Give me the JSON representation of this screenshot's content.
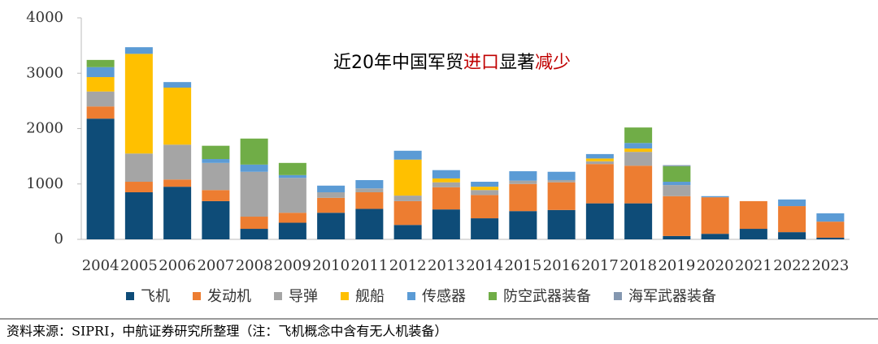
{
  "chart_data": {
    "type": "stacked_bar",
    "annotation": [
      {
        "text": "近20年中国军贸",
        "color": "#000000"
      },
      {
        "text": "进口",
        "color": "#c00000"
      },
      {
        "text": "显著",
        "color": "#000000"
      },
      {
        "text": "减少",
        "color": "#c00000"
      }
    ],
    "source": "资料来源：SIPRI，中航证券研究所整理（注：飞机概念中含有无人机装备）",
    "categories": [
      "2004",
      "2005",
      "2006",
      "2007",
      "2008",
      "2009",
      "2010",
      "2011",
      "2012",
      "2013",
      "2014",
      "2015",
      "2016",
      "2017",
      "2018",
      "2019",
      "2020",
      "2021",
      "2022",
      "2023"
    ],
    "series": [
      {
        "name": "飞机",
        "color": "#0e4c78",
        "values": [
          2180,
          850,
          950,
          690,
          190,
          300,
          480,
          550,
          260,
          540,
          380,
          510,
          530,
          650,
          650,
          60,
          100,
          190,
          130,
          30
        ]
      },
      {
        "name": "发动机",
        "color": "#ed7d31",
        "values": [
          220,
          190,
          130,
          200,
          220,
          180,
          270,
          300,
          430,
          400,
          420,
          490,
          500,
          710,
          680,
          720,
          660,
          500,
          470,
          290
        ]
      },
      {
        "name": "导弹",
        "color": "#a5a5a5",
        "values": [
          270,
          510,
          630,
          490,
          810,
          630,
          100,
          70,
          100,
          90,
          90,
          60,
          40,
          50,
          250,
          200,
          0,
          0,
          0,
          0
        ]
      },
      {
        "name": "舰船",
        "color": "#ffc000",
        "values": [
          260,
          1800,
          1030,
          0,
          0,
          0,
          0,
          0,
          650,
          70,
          60,
          0,
          0,
          50,
          60,
          0,
          0,
          0,
          0,
          0
        ]
      },
      {
        "name": "传感器",
        "color": "#5b9bd5",
        "values": [
          180,
          120,
          100,
          70,
          130,
          50,
          120,
          150,
          160,
          150,
          90,
          170,
          150,
          80,
          100,
          60,
          20,
          0,
          120,
          150
        ]
      },
      {
        "name": "防空武器装备",
        "color": "#70ad47",
        "values": [
          130,
          0,
          0,
          240,
          470,
          220,
          0,
          0,
          0,
          0,
          0,
          0,
          0,
          0,
          280,
          280,
          0,
          0,
          0,
          0
        ]
      },
      {
        "name": "海军武器装备",
        "color": "#8497b0",
        "values": [
          0,
          0,
          0,
          0,
          0,
          0,
          0,
          0,
          0,
          0,
          0,
          0,
          0,
          0,
          0,
          20,
          0,
          0,
          0,
          0
        ]
      }
    ],
    "ylim": [
      0,
      4000
    ],
    "yticks": [
      0,
      1000,
      2000,
      3000,
      4000
    ]
  }
}
